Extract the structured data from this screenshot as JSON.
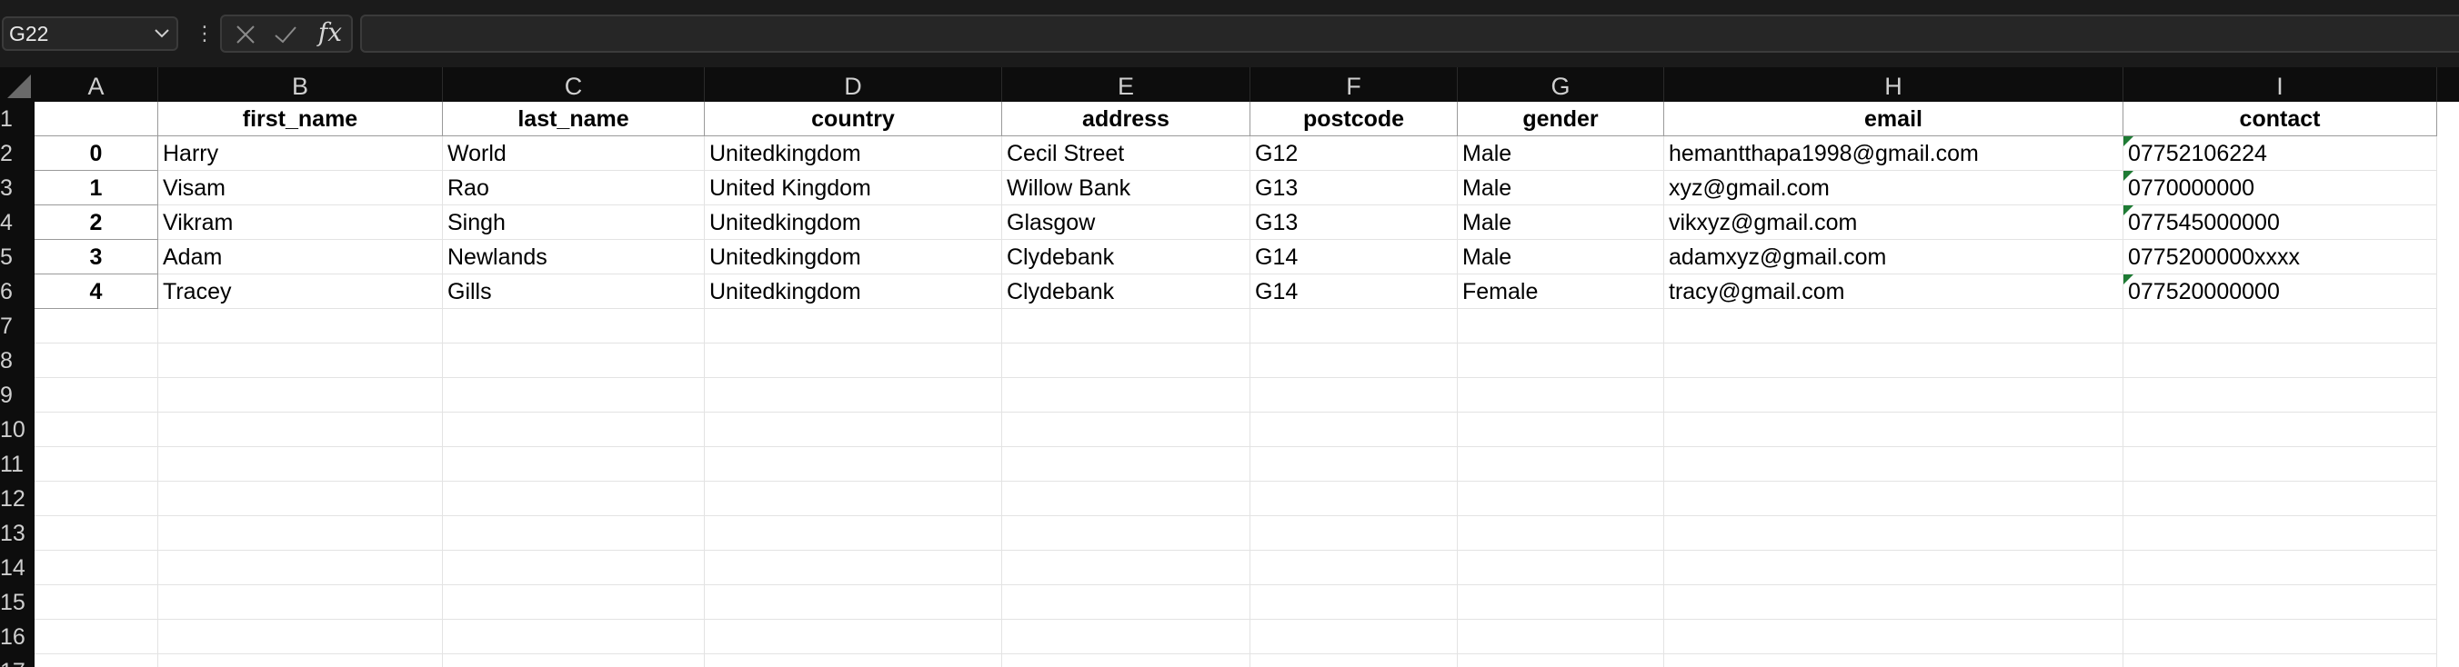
{
  "formula_bar": {
    "name_box": "G22",
    "more_glyph": "⋮",
    "fx_label": "fx",
    "formula": ""
  },
  "columns": [
    "A",
    "B",
    "C",
    "D",
    "E",
    "F",
    "G",
    "H",
    "I"
  ],
  "rows": [
    "1",
    "2",
    "3",
    "4",
    "5",
    "6",
    "7",
    "8",
    "9",
    "10",
    "11",
    "12",
    "13",
    "14",
    "15",
    "16",
    "17"
  ],
  "sheet": {
    "header_row": [
      "",
      "first_name",
      "last_name",
      "country",
      "address",
      "postcode",
      "gender",
      "email",
      "contact"
    ],
    "data_rows": [
      [
        "0",
        "Harry",
        "World",
        "Unitedkingdom",
        "Cecil Street",
        "G12",
        "Male",
        "hemantthapa1998@gmail.com",
        "07752106224"
      ],
      [
        "1",
        "Visam",
        "Rao",
        "United Kingdom",
        "Willow Bank",
        "G13",
        "Male",
        "xyz@gmail.com",
        "0770000000"
      ],
      [
        "2",
        "Vikram",
        "Singh",
        "Unitedkingdom",
        "Glasgow",
        "G13",
        "Male",
        "vikxyz@gmail.com",
        "077545000000"
      ],
      [
        "3",
        "Adam",
        "Newlands",
        "Unitedkingdom",
        "Clydebank",
        "G14",
        "Male",
        "adamxyz@gmail.com",
        "0775200000xxxx"
      ],
      [
        "4",
        "Tracey",
        "Gills",
        "Unitedkingdom",
        "Clydebank",
        "G14",
        "Female",
        "tracy@gmail.com",
        "077520000000"
      ]
    ],
    "number_as_text_flags": [
      true,
      true,
      true,
      false,
      true
    ]
  },
  "colors": {
    "chrome_bg": "#111111",
    "grid_bg": "#ffffff",
    "error_indicator": "#1e7b34"
  }
}
